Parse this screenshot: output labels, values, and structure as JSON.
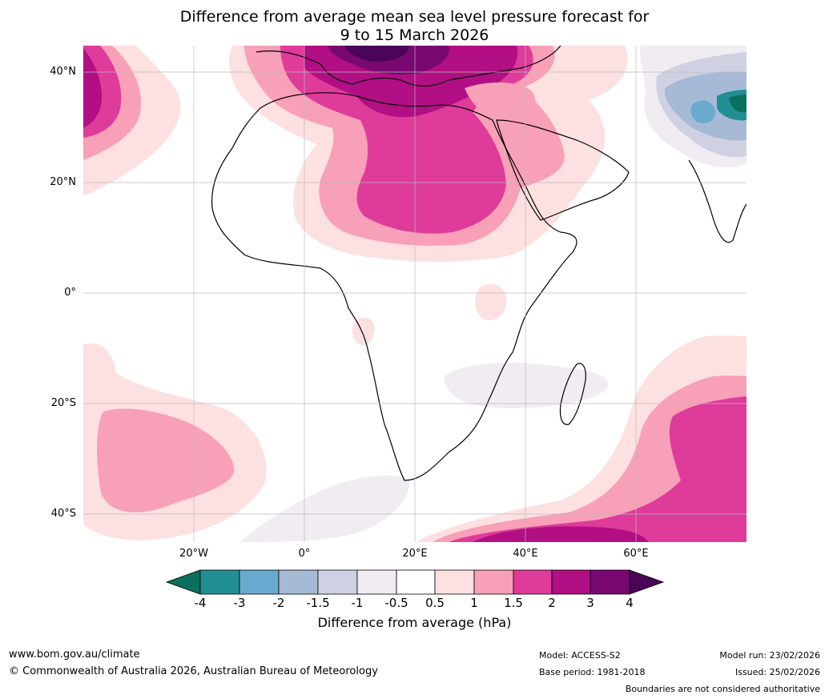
{
  "title": {
    "line1": "Difference from average mean sea level pressure forecast for",
    "line2": "9 to 15 March 2026"
  },
  "axes": {
    "lat_labels": [
      "40°N",
      "20°N",
      "0°",
      "20°S",
      "40°S"
    ],
    "lon_labels": [
      "20°W",
      "0°",
      "20°E",
      "40°E",
      "60°E"
    ]
  },
  "colorbar": {
    "label": "Difference from average (hPa)",
    "ticks": [
      "-4",
      "-3",
      "-2",
      "-1.5",
      "-1",
      "-0.5",
      "0.5",
      "1",
      "1.5",
      "2",
      "3",
      "4"
    ],
    "colors": {
      "below_min": "#0b6f5e",
      "c1": "#218f93",
      "c2": "#6aaad0",
      "c3": "#a6bad6",
      "c4": "#cfd1e3",
      "c5": "#f0ecf2",
      "c6": "#ffffff",
      "c7": "#fde0e0",
      "c8": "#f8a0b8",
      "c9": "#df3b9a",
      "c10": "#b10f83",
      "c11": "#7a0872",
      "above_max": "#4a0458"
    }
  },
  "footer": {
    "website": "www.bom.gov.au/climate",
    "copyright": "© Commonwealth of Australia 2026, Australian Bureau of Meteorology",
    "model": "Model: ACCESS-S2",
    "base_period": "Base period: 1981-2018",
    "model_run": "Model run: 23/02/2026",
    "issued": "Issued: 25/02/2026",
    "disclaimer": "Boundaries are not considered authoritative"
  }
}
